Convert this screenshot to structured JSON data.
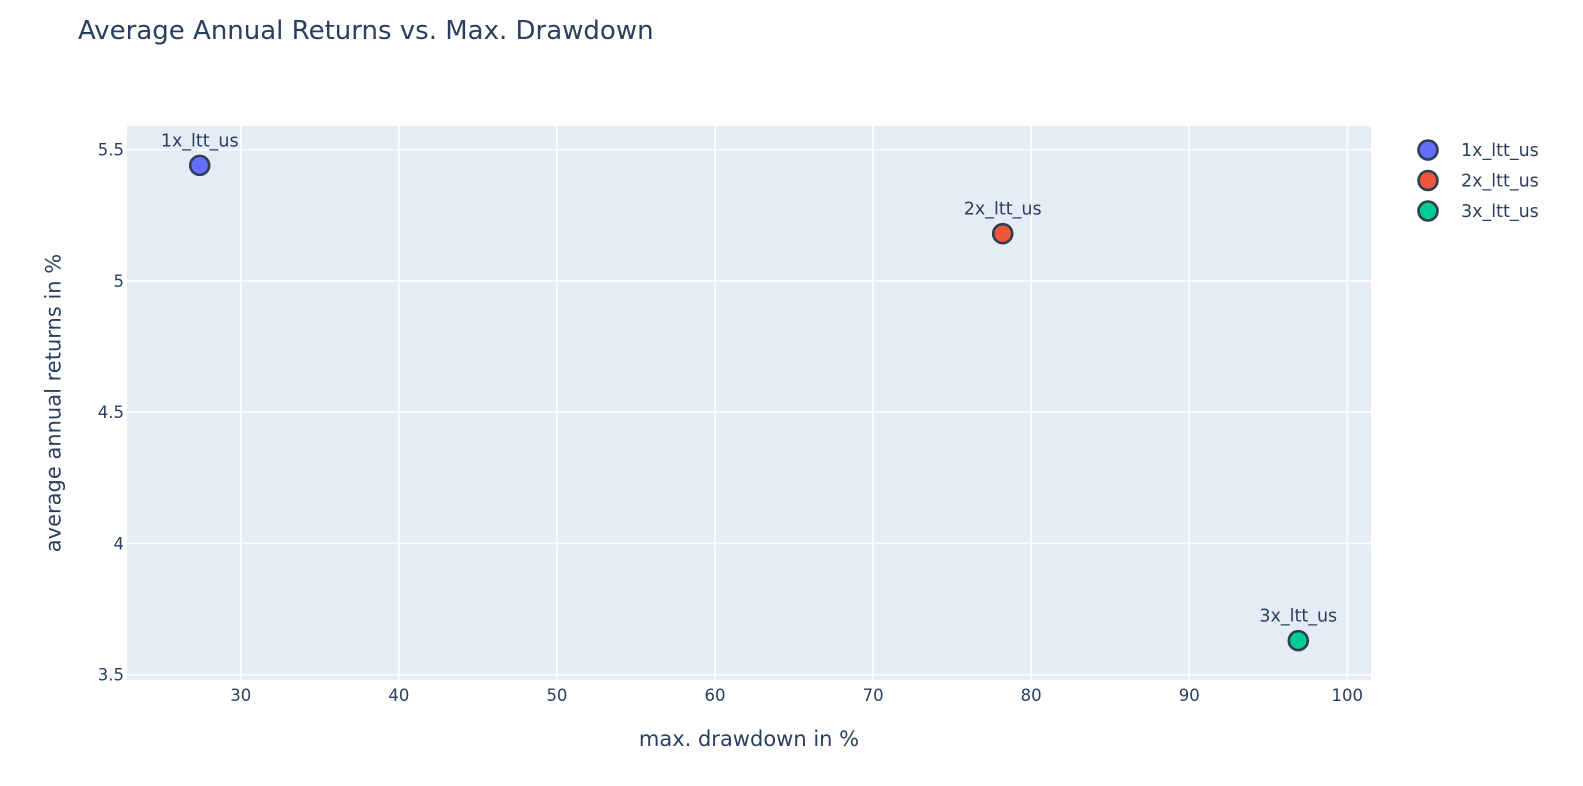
{
  "chart_data": {
    "type": "scatter",
    "title": "Average Annual Returns vs. Max. Drawdown",
    "xlabel": "max. drawdown in %",
    "ylabel": "average annual returns in %",
    "xlim": [
      22.8,
      101.5
    ],
    "ylim": [
      3.48,
      5.59
    ],
    "x_ticks": [
      30,
      40,
      50,
      60,
      70,
      80,
      90,
      100
    ],
    "x_tick_labels": [
      "30",
      "40",
      "50",
      "60",
      "70",
      "80",
      "90",
      "100"
    ],
    "y_ticks": [
      3.5,
      4,
      4.5,
      5,
      5.5
    ],
    "y_tick_labels": [
      "3.5",
      "4",
      "4.5",
      "5",
      "5.5"
    ],
    "grid": true,
    "legend_position": "top-right",
    "series": [
      {
        "name": "1x_ltt_us",
        "x": [
          27.4
        ],
        "y": [
          5.44
        ],
        "point_label": "1x_ltt_us",
        "color": "#636efa"
      },
      {
        "name": "2x_ltt_us",
        "x": [
          78.2
        ],
        "y": [
          5.18
        ],
        "point_label": "2x_ltt_us",
        "color": "#ef553b"
      },
      {
        "name": "3x_ltt_us",
        "x": [
          96.9
        ],
        "y": [
          3.63
        ],
        "point_label": "3x_ltt_us",
        "color": "#00cc96"
      }
    ]
  },
  "style": {
    "plot_background": "#e5ecf6",
    "marker_outline": "#2f3f4f",
    "text_color": "#2a3f5f"
  }
}
